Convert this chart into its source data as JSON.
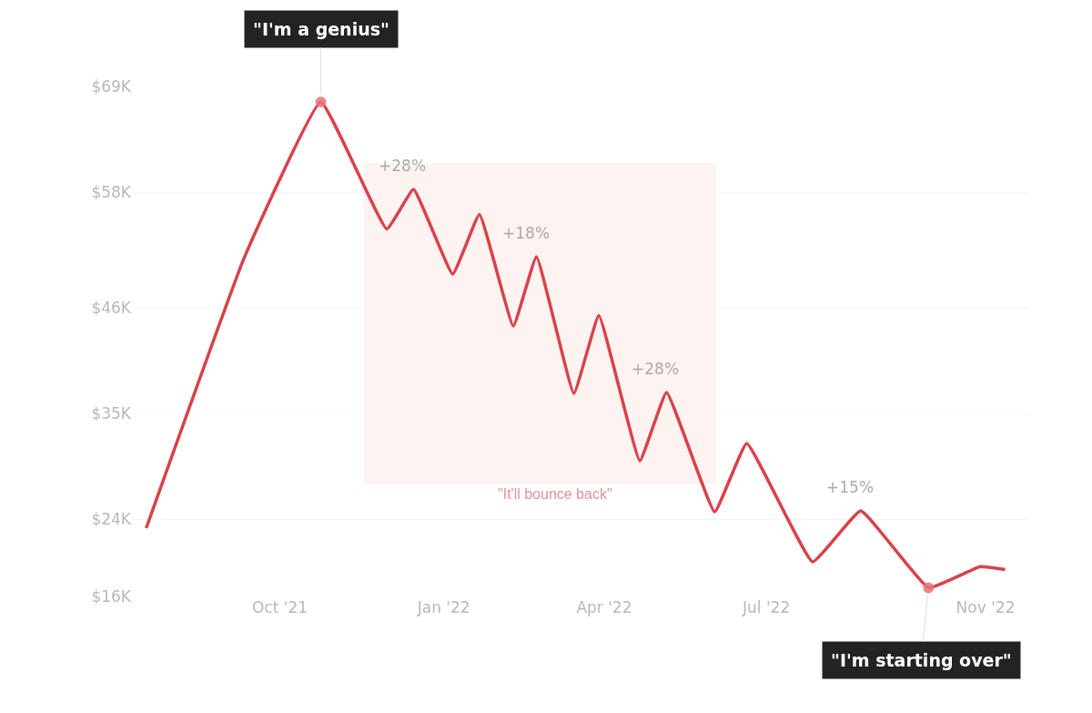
{
  "chart_data": {
    "type": "line",
    "series": [
      {
        "color": "#d9414a",
        "x": [
          "2021-07-18",
          "2021-09-11",
          "2021-10-24",
          "2021-11-30",
          "2021-12-15",
          "2022-01-06",
          "2022-01-21",
          "2022-02-09",
          "2022-02-22",
          "2022-03-15",
          "2022-03-29",
          "2022-04-21",
          "2022-05-06",
          "2022-06-02",
          "2022-06-20",
          "2022-07-27",
          "2022-08-23",
          "2022-09-30",
          "2022-10-29",
          "2022-11-12"
        ],
        "values": [
          23100,
          51200,
          67400,
          54200,
          58300,
          49500,
          55700,
          44100,
          51300,
          37100,
          45200,
          30100,
          37200,
          24800,
          31900,
          19600,
          24900,
          16900,
          19100,
          18800
        ]
      },
      {
        "type": "scatter",
        "color": "#e8737a",
        "x": [
          "2021-10-24",
          "2022-09-30"
        ],
        "values": [
          67400,
          16900
        ]
      }
    ],
    "xlim": [
      "2021-07-10",
      "2022-11-25"
    ],
    "xticks": [
      {
        "value": "2021-10-01",
        "label": "Oct '21"
      },
      {
        "value": "2022-01-01",
        "label": "Jan '22"
      },
      {
        "value": "2022-04-01",
        "label": "Apr '22"
      },
      {
        "value": "2022-07-01",
        "label": "Jul '22"
      },
      {
        "value": "2022-11-01",
        "label": "Nov '22"
      }
    ],
    "ylim": [
      16000,
      69000
    ],
    "yticks": [
      {
        "value": 16000,
        "label": "$16K"
      },
      {
        "value": 24000,
        "label": "$24K"
      },
      {
        "value": 35000,
        "label": "$35K"
      },
      {
        "value": 46000,
        "label": "$46K"
      },
      {
        "value": 58000,
        "label": "$58K"
      },
      {
        "value": 69000,
        "label": "$69K"
      }
    ],
    "grid": "y",
    "legend": false,
    "line_style": "solid",
    "bands": [
      {
        "axis": "x",
        "from": "2021-11-17",
        "to": "2022-06-03",
        "label": "\"It'll bounce back\"",
        "color": "#fdf3f1"
      }
    ],
    "annotations": [
      {
        "text": "\"I'm a genius\"",
        "x": "2021-10-24",
        "y": 67400
      },
      {
        "text": "\"I'm starting over\"",
        "x": "2022-09-30",
        "y": 16900
      },
      {
        "text": "+28%",
        "x": "2021-12-15",
        "y": 58300
      },
      {
        "text": "+18%",
        "x": "2022-02-22",
        "y": 51300
      },
      {
        "text": "+28%",
        "x": "2022-05-06",
        "y": 37200
      },
      {
        "text": "+15%",
        "x": "2022-08-23",
        "y": 24900
      }
    ]
  }
}
